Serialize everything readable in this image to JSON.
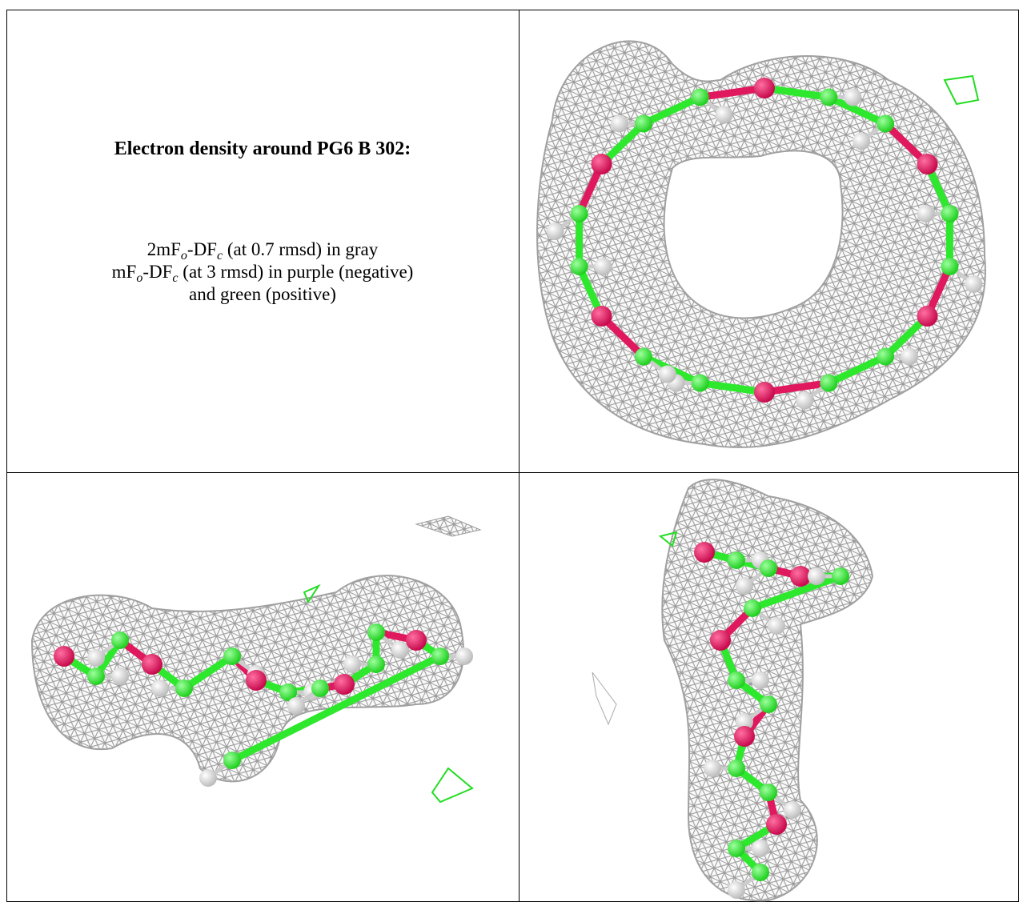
{
  "caption": {
    "title": "Electron density around PG6 B 302:",
    "lines": [
      [
        "2mF",
        "o",
        "-DF",
        "c",
        " (at 0.7 rmsd) in gray"
      ],
      [
        "mF",
        "o",
        "-DF",
        "c",
        " (at 3 rmsd) in purple (negative)"
      ],
      [
        "and green (positive)"
      ]
    ]
  }
}
